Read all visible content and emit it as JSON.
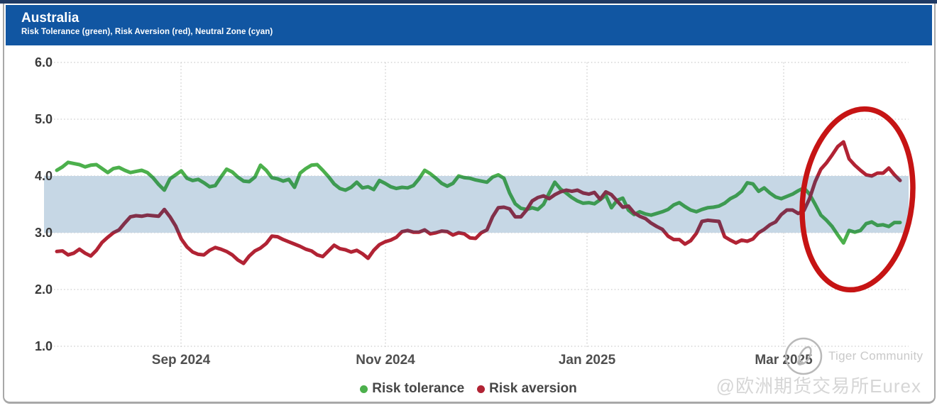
{
  "header": {
    "title": "Australia",
    "subtitle": "Risk Tolerance (green), Risk Aversion (red), Neutral Zone (cyan)"
  },
  "legend": [
    {
      "label": "Risk tolerance",
      "color": "#4cb04c"
    },
    {
      "label": "Risk aversion",
      "color": "#b12334"
    }
  ],
  "watermark": {
    "brand": "Tiger Community",
    "handle": "@欧洲期货交易所Eurex"
  },
  "colors": {
    "header_bg": "#1156a2",
    "top_strip": "#1f3a64",
    "neutral_zone": "#c6d7e5",
    "gridline": "#cbcbcb",
    "green_bright": "#4cb04c",
    "green_muted": "#3d9a52",
    "red_bright": "#b12334",
    "red_muted": "#82304a",
    "highlight_ellipse": "#c61414"
  },
  "chart_data": {
    "type": "line",
    "title": "Australia",
    "ylabel": "",
    "xlabel": "",
    "ylim": [
      1.0,
      6.0
    ],
    "grid": true,
    "legend_position": "bottom-center",
    "y_ticks": [
      6.0,
      5.0,
      4.0,
      3.0,
      2.0,
      1.0
    ],
    "x_ticks": [
      "Sep 2024",
      "Nov 2024",
      "Jan 2025",
      "Mar 2025"
    ],
    "x_range_note": "daily values, late Jul 2024 to early Apr 2025",
    "neutral_zone": [
      3.0,
      4.0
    ],
    "annotation": {
      "shape": "ellipse",
      "color": "#c61414",
      "region": "Mar-Apr 2025 divergence"
    },
    "series": [
      {
        "name": "Risk tolerance",
        "color": "#4cb04c",
        "values": [
          4.1,
          4.16,
          4.24,
          4.22,
          4.2,
          4.16,
          4.19,
          4.2,
          4.13,
          4.06,
          4.13,
          4.15,
          4.1,
          4.06,
          4.08,
          4.1,
          4.06,
          3.97,
          3.85,
          3.75,
          3.95,
          4.02,
          4.09,
          3.96,
          3.92,
          3.94,
          3.88,
          3.81,
          3.83,
          3.98,
          4.12,
          4.07,
          3.98,
          3.91,
          3.9,
          3.98,
          4.19,
          4.1,
          3.97,
          3.95,
          3.91,
          3.94,
          3.8,
          4.05,
          4.13,
          4.19,
          4.2,
          4.1,
          3.99,
          3.86,
          3.78,
          3.75,
          3.8,
          3.89,
          3.79,
          3.81,
          3.76,
          3.92,
          3.87,
          3.81,
          3.78,
          3.8,
          3.79,
          3.83,
          3.95,
          4.1,
          4.04,
          3.96,
          3.87,
          3.82,
          3.87,
          4.0,
          3.97,
          3.96,
          3.93,
          3.91,
          3.89,
          3.98,
          4.02,
          3.96,
          3.7,
          3.51,
          3.43,
          3.41,
          3.44,
          3.41,
          3.5,
          3.7,
          3.89,
          3.77,
          3.7,
          3.62,
          3.56,
          3.52,
          3.53,
          3.51,
          3.58,
          3.66,
          3.44,
          3.57,
          3.61,
          3.4,
          3.32,
          3.37,
          3.33,
          3.31,
          3.34,
          3.37,
          3.41,
          3.49,
          3.53,
          3.46,
          3.4,
          3.37,
          3.41,
          3.44,
          3.45,
          3.47,
          3.52,
          3.6,
          3.65,
          3.73,
          3.88,
          3.86,
          3.73,
          3.79,
          3.7,
          3.63,
          3.6,
          3.64,
          3.68,
          3.74,
          3.79,
          3.68,
          3.5,
          3.31,
          3.22,
          3.11,
          2.96,
          2.82,
          3.04,
          3.01,
          3.04,
          3.16,
          3.19,
          3.13,
          3.14,
          3.11,
          3.18,
          3.18
        ]
      },
      {
        "name": "Risk aversion",
        "color": "#b12334",
        "values": [
          2.67,
          2.68,
          2.61,
          2.64,
          2.71,
          2.64,
          2.59,
          2.69,
          2.83,
          2.92,
          3.0,
          3.05,
          3.17,
          3.28,
          3.3,
          3.29,
          3.31,
          3.3,
          3.29,
          3.41,
          3.28,
          3.12,
          2.89,
          2.75,
          2.66,
          2.62,
          2.61,
          2.69,
          2.74,
          2.71,
          2.67,
          2.61,
          2.52,
          2.46,
          2.59,
          2.68,
          2.73,
          2.81,
          2.94,
          2.93,
          2.88,
          2.84,
          2.8,
          2.76,
          2.71,
          2.68,
          2.61,
          2.58,
          2.68,
          2.78,
          2.72,
          2.7,
          2.66,
          2.69,
          2.63,
          2.55,
          2.69,
          2.79,
          2.84,
          2.87,
          2.92,
          3.02,
          3.04,
          3.01,
          3.01,
          3.05,
          2.98,
          3.0,
          3.03,
          3.02,
          2.96,
          3.0,
          2.98,
          2.91,
          2.9,
          3.0,
          3.05,
          3.28,
          3.44,
          3.45,
          3.42,
          3.28,
          3.28,
          3.4,
          3.56,
          3.62,
          3.65,
          3.6,
          3.67,
          3.72,
          3.75,
          3.73,
          3.75,
          3.7,
          3.68,
          3.71,
          3.59,
          3.72,
          3.67,
          3.56,
          3.45,
          3.47,
          3.35,
          3.29,
          3.25,
          3.17,
          3.11,
          3.06,
          2.94,
          2.88,
          2.88,
          2.8,
          2.86,
          2.99,
          3.2,
          3.22,
          3.21,
          3.2,
          2.93,
          2.87,
          2.82,
          2.87,
          2.85,
          2.89,
          3.0,
          3.06,
          3.14,
          3.19,
          3.32,
          3.4,
          3.4,
          3.34,
          3.39,
          3.6,
          3.9,
          4.12,
          4.23,
          4.37,
          4.52,
          4.6,
          4.3,
          4.19,
          4.1,
          4.02,
          4.0,
          4.05,
          4.05,
          4.14,
          4.02,
          3.92
        ]
      }
    ]
  }
}
